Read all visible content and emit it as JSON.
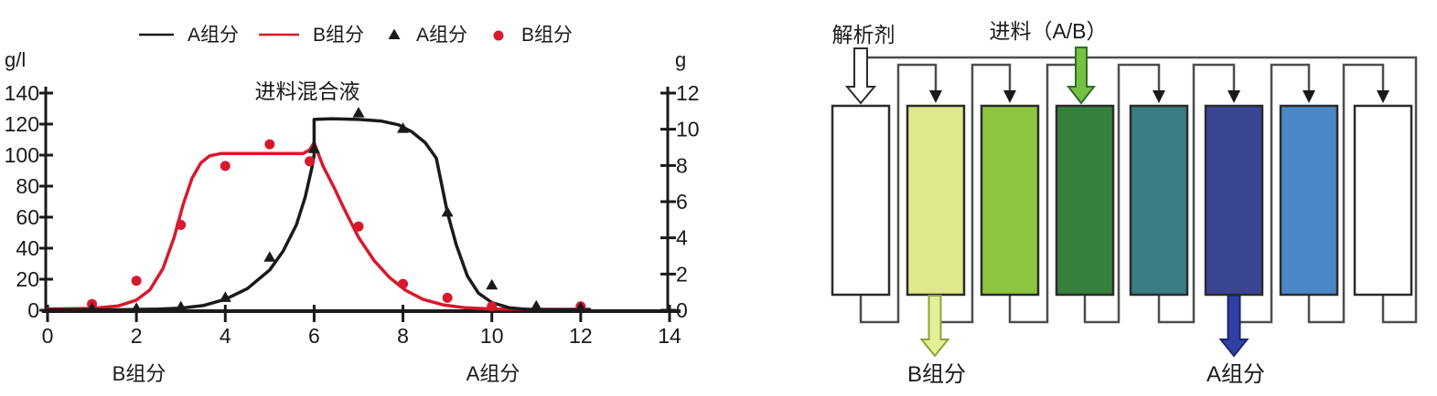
{
  "chart_data": {
    "type": "line",
    "title": "",
    "x_range": [
      0,
      14
    ],
    "x_ticks": [
      0,
      2,
      4,
      6,
      8,
      10,
      12,
      14
    ],
    "left_axis": {
      "title": "g/l",
      "range": [
        0,
        140
      ],
      "ticks": [
        0,
        20,
        40,
        60,
        80,
        100,
        120,
        140
      ]
    },
    "right_axis": {
      "title": "g",
      "range": [
        0,
        12
      ],
      "ticks": [
        0,
        2,
        4,
        6,
        8,
        10,
        12
      ]
    },
    "annotation": {
      "text": "进料混合液",
      "x": 5.85,
      "y": 140
    },
    "x_axis_labels": [
      {
        "text": "B组分",
        "x": 2.05
      },
      {
        "text": "A组分",
        "x": 10.0
      }
    ],
    "legend": [
      {
        "marker": "line",
        "color": "#1a1a1a",
        "label": "A组分"
      },
      {
        "marker": "line",
        "color": "#d7192c",
        "label": "B组分"
      },
      {
        "marker": "triangle",
        "color": "#1a1a1a",
        "label": "A组分"
      },
      {
        "marker": "dot",
        "color": "#d7192c",
        "label": "B组分"
      }
    ],
    "series": [
      {
        "name": "B组分 curve",
        "type": "line",
        "color": "#d7192c",
        "points": [
          [
            0,
            0.8
          ],
          [
            1,
            1.2
          ],
          [
            1.6,
            2.8
          ],
          [
            2,
            6.5
          ],
          [
            2.3,
            13
          ],
          [
            2.6,
            27
          ],
          [
            2.85,
            47
          ],
          [
            3.05,
            68
          ],
          [
            3.25,
            85
          ],
          [
            3.45,
            95
          ],
          [
            3.65,
            99.5
          ],
          [
            3.9,
            101
          ],
          [
            5,
            101
          ],
          [
            5.75,
            101
          ],
          [
            5.9,
            103.5
          ],
          [
            6.0,
            108
          ],
          [
            6.05,
            104
          ],
          [
            6.2,
            93
          ],
          [
            6.45,
            79
          ],
          [
            6.7,
            64
          ],
          [
            7.0,
            47
          ],
          [
            7.35,
            32
          ],
          [
            7.7,
            21
          ],
          [
            8.05,
            13
          ],
          [
            8.45,
            7
          ],
          [
            8.9,
            3.5
          ],
          [
            9.4,
            1.6
          ],
          [
            10,
            0.8
          ],
          [
            11,
            0.6
          ],
          [
            12.2,
            0.6
          ]
        ]
      },
      {
        "name": "A组分 curve",
        "type": "line",
        "color": "#1a1a1a",
        "points": [
          [
            0,
            0.3
          ],
          [
            1.5,
            0.3
          ],
          [
            2.5,
            0.7
          ],
          [
            3,
            1.3
          ],
          [
            3.5,
            3
          ],
          [
            4,
            7
          ],
          [
            4.5,
            14
          ],
          [
            5,
            26
          ],
          [
            5.3,
            38
          ],
          [
            5.6,
            55
          ],
          [
            5.8,
            73
          ],
          [
            5.95,
            92
          ],
          [
            6.0,
            100
          ],
          [
            6.0,
            123
          ],
          [
            6.4,
            123.5
          ],
          [
            7.0,
            123
          ],
          [
            7.5,
            122
          ],
          [
            7.9,
            119.5
          ],
          [
            8.2,
            115
          ],
          [
            8.5,
            108
          ],
          [
            8.75,
            98
          ],
          [
            9.0,
            63
          ],
          [
            9.2,
            42
          ],
          [
            9.45,
            22
          ],
          [
            9.7,
            11
          ],
          [
            10,
            5
          ],
          [
            10.4,
            1.5
          ],
          [
            10.8,
            0.5
          ],
          [
            11.5,
            0.3
          ],
          [
            12.2,
            0.3
          ]
        ]
      },
      {
        "name": "B组分 data",
        "type": "scatter",
        "marker": "dot",
        "color": "#d7192c",
        "points": [
          [
            1,
            4
          ],
          [
            2,
            19
          ],
          [
            3,
            55
          ],
          [
            4,
            93
          ],
          [
            5,
            107
          ],
          [
            5.9,
            96
          ],
          [
            7,
            54
          ],
          [
            8,
            17
          ],
          [
            9,
            8
          ],
          [
            10,
            2.5
          ],
          [
            12,
            2.5
          ]
        ]
      },
      {
        "name": "A组分 data",
        "type": "scatter",
        "marker": "triangle",
        "color": "#1a1a1a",
        "points": [
          [
            1,
            1
          ],
          [
            2,
            1
          ],
          [
            3,
            2
          ],
          [
            4,
            8
          ],
          [
            5,
            34
          ],
          [
            6,
            104
          ],
          [
            7,
            127
          ],
          [
            8,
            117
          ],
          [
            9,
            63
          ],
          [
            10,
            16
          ],
          [
            11,
            2.5
          ],
          [
            12,
            1.5
          ]
        ]
      }
    ]
  },
  "diagram": {
    "desorbent_label": "解析剂",
    "feed_label": "进料（A/B）",
    "outlet_b_label": "B组分",
    "outlet_a_label": "A组分",
    "pipe_color": "#4d4d4d",
    "column_border": "#2b2b2b",
    "column_fills": [
      "#ffffff",
      "#dfe98c",
      "#8cc63e",
      "#35813c",
      "#3a7d82",
      "#3a4693",
      "#4a87c7",
      "#ffffff"
    ],
    "arrows": {
      "desorbent": {
        "fill": "#ffffff",
        "stroke": "#2b2b2b"
      },
      "feed": {
        "fill": "#76c043",
        "stroke": "#2e6e2b"
      },
      "outlet_b": {
        "fill": "#e4ee96",
        "stroke": "#93a136"
      },
      "outlet_a": {
        "fill": "#3040a0",
        "stroke": "#1a2670"
      }
    }
  }
}
